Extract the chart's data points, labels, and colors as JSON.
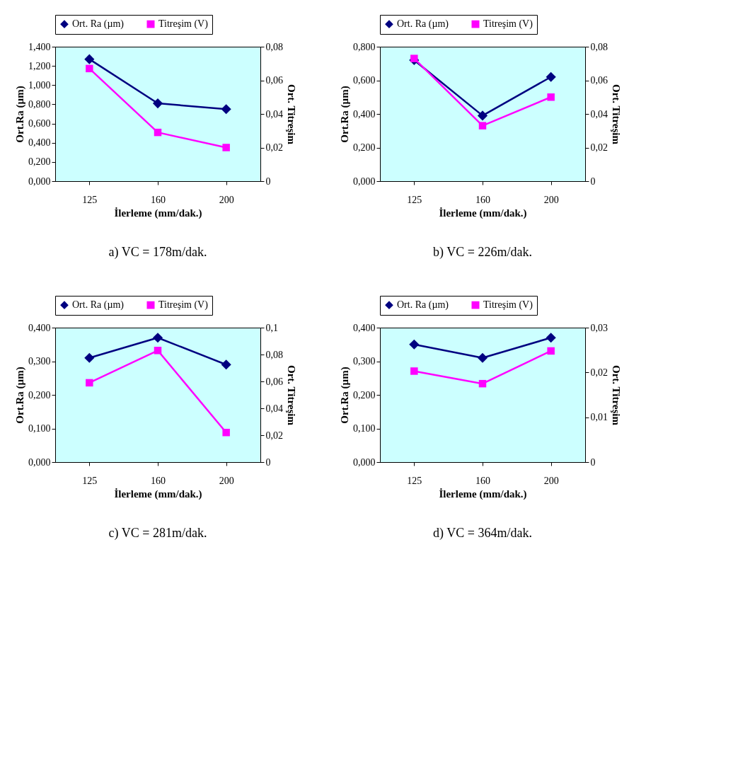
{
  "chart_data": [
    {
      "type": "line",
      "title": "a) VC = 178m/dak.",
      "xlabel": "İlerleme (mm/dak.)",
      "ylabel": "Ort.Ra (µm)",
      "y2label": "Ort. Titreşim",
      "categories": [
        "125",
        "160",
        "200"
      ],
      "legend": "top",
      "grid": false,
      "line_style": "solid",
      "ylim": [
        0,
        1.4
      ],
      "yticks": [
        {
          "value": 0,
          "label": "0,000"
        },
        {
          "value": 0.2,
          "label": "0,200"
        },
        {
          "value": 0.4,
          "label": "0,400"
        },
        {
          "value": 0.6,
          "label": "0,600"
        },
        {
          "value": 0.8,
          "label": "0,800"
        },
        {
          "value": 1.0,
          "label": "1,000"
        },
        {
          "value": 1.2,
          "label": "1,200"
        },
        {
          "value": 1.4,
          "label": "1,400"
        }
      ],
      "y2lim": [
        0,
        0.08
      ],
      "y2ticks": [
        {
          "value": 0,
          "label": "0"
        },
        {
          "value": 0.02,
          "label": "0,02"
        },
        {
          "value": 0.04,
          "label": "0,04"
        },
        {
          "value": 0.06,
          "label": "0,06"
        },
        {
          "value": 0.08,
          "label": "0,08"
        }
      ],
      "series": [
        {
          "name": "Ort. Ra (µm)",
          "color": "#000080",
          "marker": "diamond",
          "values": [
            1.27,
            0.81,
            0.75
          ]
        },
        {
          "name": "Titreşim (V)",
          "color": "#ff00ff",
          "marker": "square",
          "axis": "y2",
          "values": [
            0.067,
            0.029,
            0.02
          ]
        }
      ]
    },
    {
      "type": "line",
      "title": "b) VC = 226m/dak.",
      "xlabel": "İlerleme (mm/dak.)",
      "ylabel": "Ort.Ra (µm)",
      "y2label": "Ort. Titreşim",
      "categories": [
        "125",
        "160",
        "200"
      ],
      "legend": "top",
      "grid": false,
      "line_style": "solid",
      "ylim": [
        0,
        0.8
      ],
      "yticks": [
        {
          "value": 0,
          "label": "0,000"
        },
        {
          "value": 0.2,
          "label": "0,200"
        },
        {
          "value": 0.4,
          "label": "0,400"
        },
        {
          "value": 0.6,
          "label": "0,600"
        },
        {
          "value": 0.8,
          "label": "0,800"
        }
      ],
      "y2lim": [
        0,
        0.08
      ],
      "y2ticks": [
        {
          "value": 0,
          "label": "0"
        },
        {
          "value": 0.02,
          "label": "0,02"
        },
        {
          "value": 0.04,
          "label": "0,04"
        },
        {
          "value": 0.06,
          "label": "0,06"
        },
        {
          "value": 0.08,
          "label": "0,08"
        }
      ],
      "series": [
        {
          "name": "Ort. Ra (µm)",
          "color": "#000080",
          "marker": "diamond",
          "values": [
            0.72,
            0.39,
            0.62
          ]
        },
        {
          "name": "Titreşim (V)",
          "color": "#ff00ff",
          "marker": "square",
          "axis": "y2",
          "values": [
            0.073,
            0.033,
            0.05
          ]
        }
      ]
    },
    {
      "type": "line",
      "title": "c) VC = 281m/dak.",
      "xlabel": "İlerleme (mm/dak.)",
      "ylabel": "Ort.Ra (µm)",
      "y2label": "Ort. Titreşim",
      "categories": [
        "125",
        "160",
        "200"
      ],
      "legend": "top",
      "grid": false,
      "line_style": "solid",
      "ylim": [
        0,
        0.4
      ],
      "yticks": [
        {
          "value": 0,
          "label": "0,000"
        },
        {
          "value": 0.1,
          "label": "0,100"
        },
        {
          "value": 0.2,
          "label": "0,200"
        },
        {
          "value": 0.3,
          "label": "0,300"
        },
        {
          "value": 0.4,
          "label": "0,400"
        }
      ],
      "y2lim": [
        0,
        0.1
      ],
      "y2ticks": [
        {
          "value": 0,
          "label": "0"
        },
        {
          "value": 0.02,
          "label": "0,02"
        },
        {
          "value": 0.04,
          "label": "0,04"
        },
        {
          "value": 0.06,
          "label": "0,06"
        },
        {
          "value": 0.08,
          "label": "0,08"
        },
        {
          "value": 0.1,
          "label": "0,1"
        }
      ],
      "series": [
        {
          "name": "Ort. Ra (µm)",
          "color": "#000080",
          "marker": "diamond",
          "values": [
            0.31,
            0.37,
            0.29
          ]
        },
        {
          "name": "Titreşim (V)",
          "color": "#ff00ff",
          "marker": "square",
          "axis": "y2",
          "values": [
            0.059,
            0.083,
            0.022
          ]
        }
      ]
    },
    {
      "type": "line",
      "title": "d) VC = 364m/dak.",
      "xlabel": "İlerleme (mm/dak.)",
      "ylabel": "Ort.Ra (µm)",
      "y2label": "Ort. Titreşim",
      "categories": [
        "125",
        "160",
        "200"
      ],
      "legend": "top",
      "grid": false,
      "line_style": "solid",
      "ylim": [
        0,
        0.4
      ],
      "yticks": [
        {
          "value": 0,
          "label": "0,000"
        },
        {
          "value": 0.1,
          "label": "0,100"
        },
        {
          "value": 0.2,
          "label": "0,200"
        },
        {
          "value": 0.3,
          "label": "0,300"
        },
        {
          "value": 0.4,
          "label": "0,400"
        }
      ],
      "y2lim": [
        0,
        0.03
      ],
      "y2ticks": [
        {
          "value": 0,
          "label": "0"
        },
        {
          "value": 0.01,
          "label": "0,01"
        },
        {
          "value": 0.02,
          "label": "0,02"
        },
        {
          "value": 0.03,
          "label": "0,03"
        }
      ],
      "series": [
        {
          "name": "Ort. Ra (µm)",
          "color": "#000080",
          "marker": "diamond",
          "values": [
            0.35,
            0.31,
            0.37
          ]
        },
        {
          "name": "Titreşim (V)",
          "color": "#ff00ff",
          "marker": "square",
          "axis": "y2",
          "values": [
            0.0203,
            0.0175,
            0.0248
          ]
        }
      ]
    }
  ]
}
